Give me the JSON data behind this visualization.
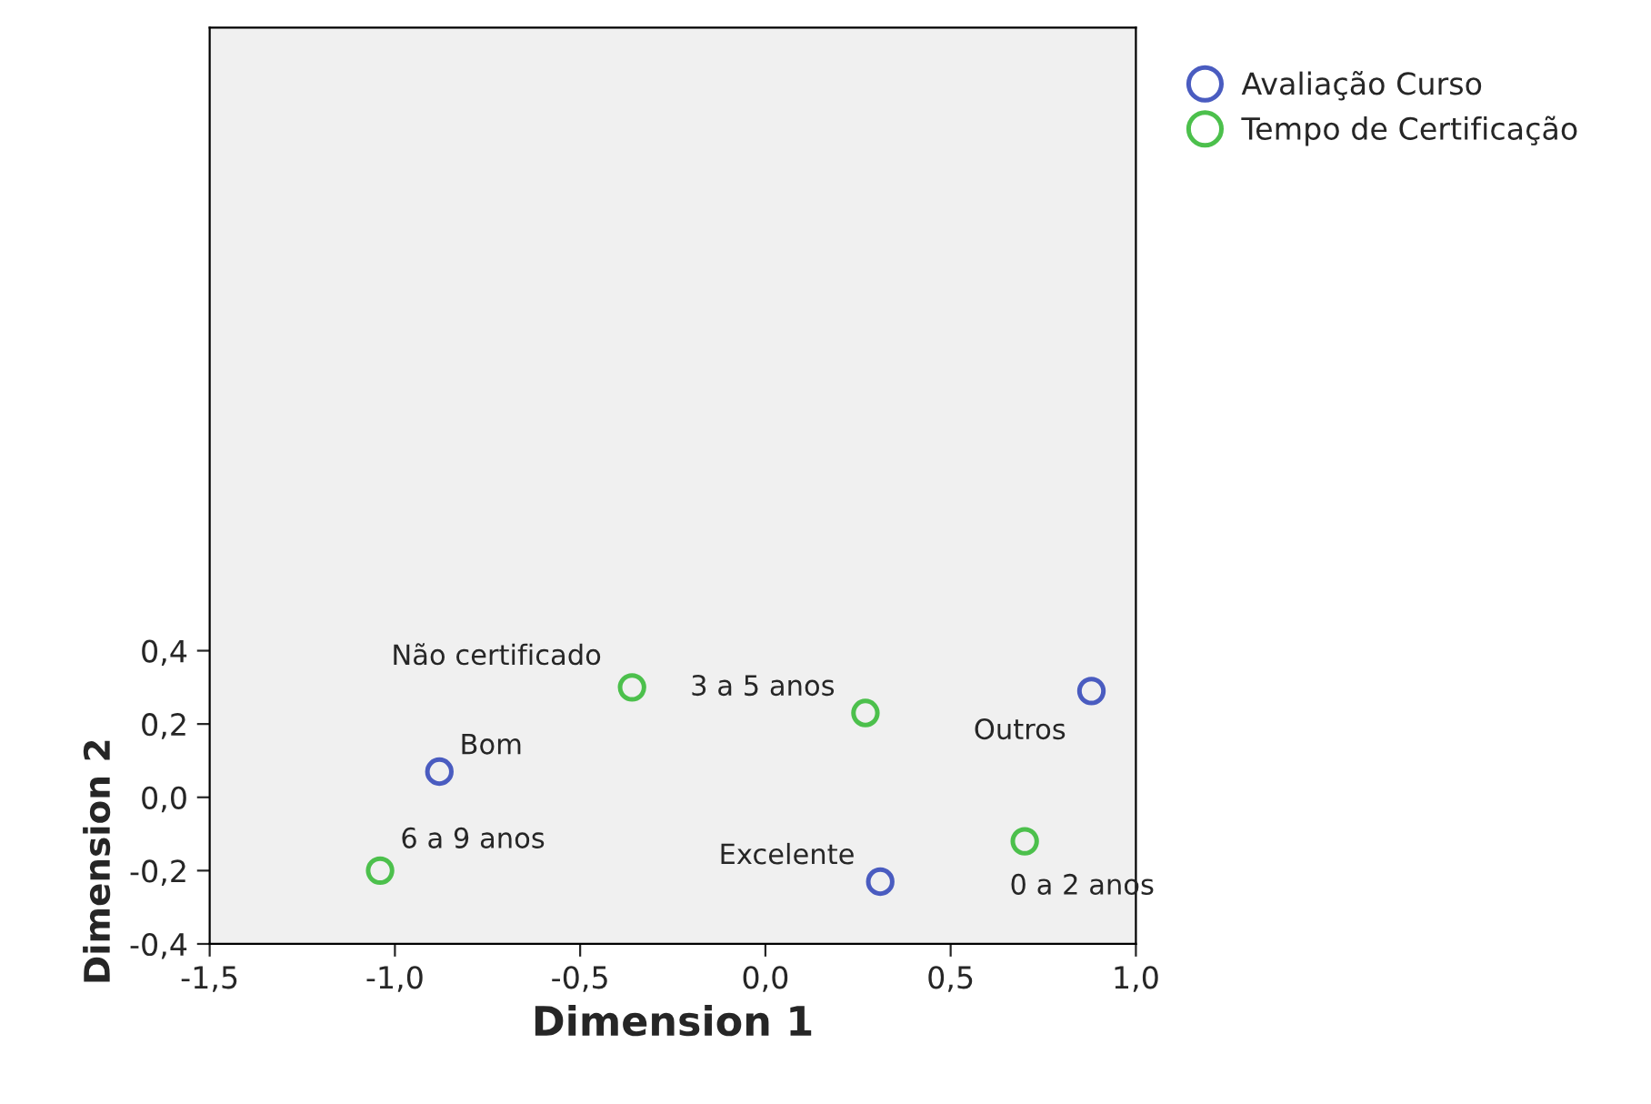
{
  "chart_data": {
    "type": "scatter",
    "xlabel": "Dimension 1",
    "ylabel": "Dimension 2",
    "series": [
      {
        "name": "Avaliação Curso",
        "color": "#4a5cc0",
        "x": [
          -0.88,
          0.31,
          0.88
        ],
        "values": [
          0.07,
          -0.23,
          0.29
        ]
      },
      {
        "name": "Tempo de Certificação",
        "color": "#4cc04c",
        "x": [
          -0.36,
          0.27,
          0.7,
          -1.04
        ],
        "values": [
          0.3,
          0.23,
          -0.12,
          -0.2
        ]
      }
    ],
    "annotations": [
      {
        "text": "Bom",
        "x": -0.88,
        "y": 0.07
      },
      {
        "text": "Excelente",
        "x": 0.31,
        "y": -0.23
      },
      {
        "text": "Outros",
        "x": 0.88,
        "y": 0.29
      },
      {
        "text": "Não certificado",
        "x": -0.36,
        "y": 0.3
      },
      {
        "text": "3 a 5 anos",
        "x": 0.27,
        "y": 0.23
      },
      {
        "text": "0 a 2 anos",
        "x": 0.7,
        "y": -0.12
      },
      {
        "text": "6 a 9 anos",
        "x": -1.04,
        "y": -0.2
      }
    ],
    "xlim": [
      -1.5,
      1.0
    ],
    "ylim": [
      -0.4,
      2.1
    ],
    "xticks": [
      {
        "value": -1.5,
        "label": "-1,5"
      },
      {
        "value": -1.0,
        "label": "-1,0"
      },
      {
        "value": -0.5,
        "label": "-0,5"
      },
      {
        "value": 0.0,
        "label": "0,0"
      },
      {
        "value": 0.5,
        "label": "0,5"
      },
      {
        "value": 1.0,
        "label": "1,0"
      }
    ],
    "yticks": [
      {
        "value": -0.4,
        "label": "-0,4"
      },
      {
        "value": -0.2,
        "label": "-0,2"
      },
      {
        "value": 0.0,
        "label": "0,0"
      },
      {
        "value": 0.2,
        "label": "0,2"
      },
      {
        "value": 0.4,
        "label": "0,4"
      }
    ],
    "legend": "top right",
    "grid": false,
    "marker": "circle"
  }
}
